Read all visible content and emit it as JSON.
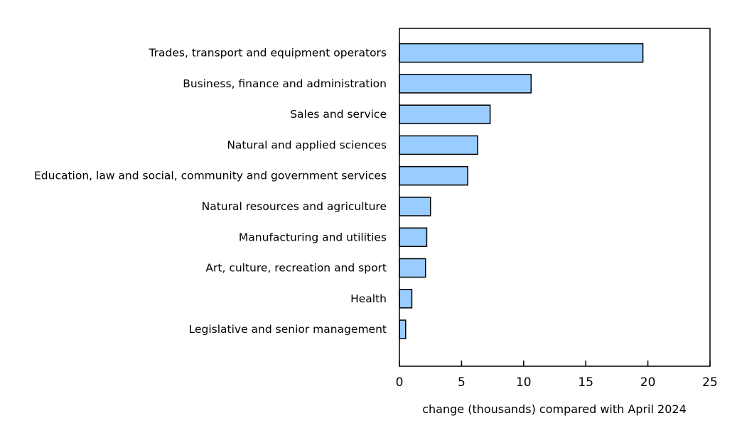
{
  "chart_data": {
    "type": "bar",
    "orientation": "horizontal",
    "title": "",
    "xlabel": "change (thousands) compared with April 2024",
    "ylabel": "",
    "xlim": [
      0,
      25
    ],
    "xticks": [
      0,
      5,
      10,
      15,
      20,
      25
    ],
    "grid": false,
    "categories": [
      "Trades, transport and equipment operators",
      "Business, finance and administration",
      "Sales and service",
      "Natural and applied sciences",
      "Education, law and social, community and government services",
      "Natural resources and agriculture",
      "Manufacturing and utilities",
      "Art, culture, recreation and sport",
      "Health",
      "Legislative and senior management"
    ],
    "values": [
      19.6,
      10.6,
      7.3,
      6.3,
      5.5,
      2.5,
      2.2,
      2.1,
      1.0,
      0.5
    ],
    "colors": {
      "bar_fill": "#99ccff",
      "bar_stroke": "#000000"
    }
  }
}
